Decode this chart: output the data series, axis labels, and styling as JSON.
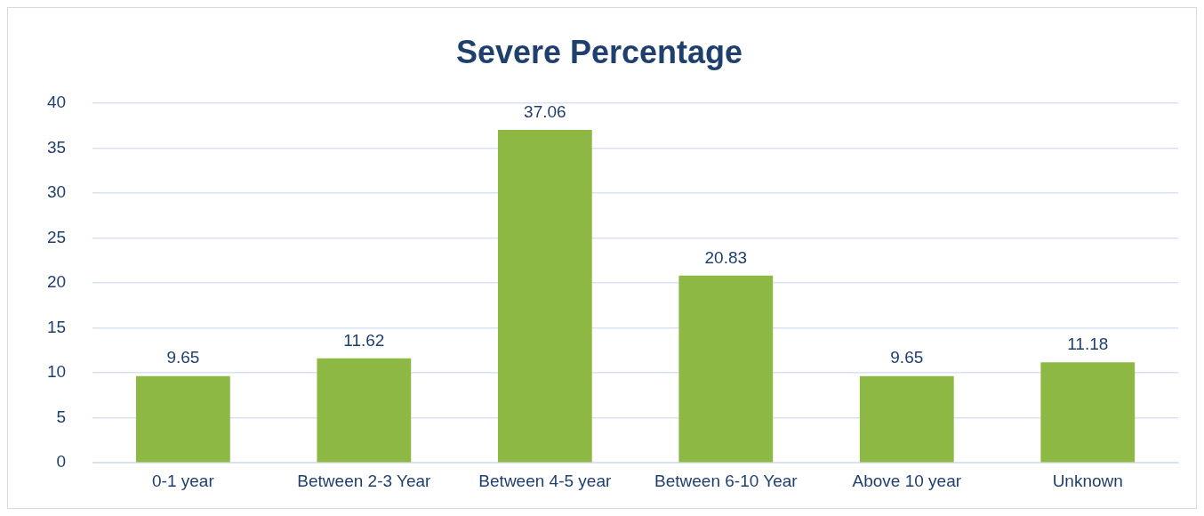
{
  "chart_data": {
    "type": "bar",
    "title": "Severe Percentage",
    "categories": [
      "0-1 year",
      "Between 2-3 Year",
      "Between 4-5 year",
      "Between 6-10 Year",
      "Above 10 year",
      "Unknown"
    ],
    "values": [
      9.65,
      11.62,
      37.06,
      20.83,
      9.65,
      11.18
    ],
    "color": "#8cb843",
    "ylim": [
      0,
      40
    ],
    "yticks": [
      0,
      5,
      10,
      15,
      20,
      25,
      30,
      35,
      40
    ],
    "grid": "y",
    "data_labels": true
  }
}
